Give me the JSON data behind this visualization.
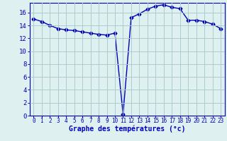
{
  "x": [
    0,
    1,
    2,
    3,
    4,
    5,
    6,
    7,
    8,
    9,
    10,
    11,
    12,
    13,
    14,
    15,
    16,
    17,
    18,
    19,
    20,
    21,
    22,
    23
  ],
  "y": [
    15.0,
    14.6,
    14.0,
    13.5,
    13.3,
    13.2,
    13.0,
    12.8,
    12.6,
    12.5,
    12.8,
    0.2,
    15.2,
    15.8,
    16.5,
    17.0,
    17.2,
    16.8,
    16.6,
    14.8,
    14.8,
    14.6,
    14.2,
    13.5
  ],
  "line_color": "#0000bb",
  "marker": "D",
  "marker_size": 2.5,
  "bg_color": "#dff0f0",
  "grid_color": "#aacccc",
  "xlabel": "Graphe des températures (°c)",
  "xlabel_color": "#0000bb",
  "tick_color": "#0000bb",
  "xlim": [
    -0.5,
    23.5
  ],
  "ylim": [
    0,
    17.5
  ],
  "yticks": [
    0,
    2,
    4,
    6,
    8,
    10,
    12,
    14,
    16
  ],
  "xticks": [
    0,
    1,
    2,
    3,
    4,
    5,
    6,
    7,
    8,
    9,
    10,
    11,
    12,
    13,
    14,
    15,
    16,
    17,
    18,
    19,
    20,
    21,
    22,
    23
  ]
}
